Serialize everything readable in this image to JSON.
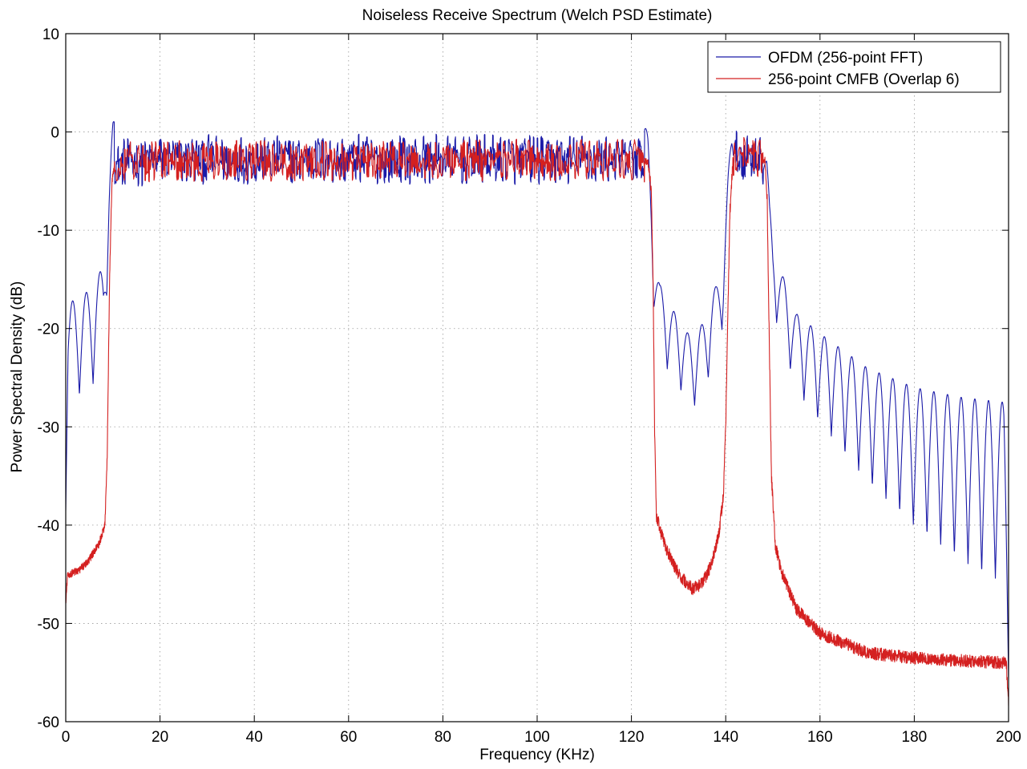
{
  "chart_data": {
    "type": "line",
    "title": "Noiseless Receive Spectrum (Welch PSD Estimate)",
    "xlabel": "Frequency (KHz)",
    "ylabel": "Power Spectral Density (dB)",
    "xlim": [
      0,
      200
    ],
    "ylim": [
      -60,
      10
    ],
    "x_ticks": [
      "0",
      "20",
      "40",
      "60",
      "80",
      "100",
      "120",
      "140",
      "160",
      "180",
      "200"
    ],
    "y_ticks": [
      "10",
      "0",
      "-10",
      "-20",
      "-30",
      "-40",
      "-50",
      "-60"
    ],
    "grid": true,
    "legend_position": "top-right",
    "series": [
      {
        "name": "OFDM (256-point FFT)",
        "color": "#1a1aa8",
        "x": [
          0,
          0.5,
          2,
          4,
          6,
          8,
          8.6,
          9.2,
          10,
          11,
          20,
          40,
          60,
          80,
          100,
          110,
          120,
          122.5,
          123.5,
          124.2,
          124.8,
          126,
          128,
          130,
          132,
          133,
          134,
          136,
          138,
          139.5,
          140.5,
          141.3,
          142,
          143,
          145,
          147,
          148,
          148.7,
          149.3,
          150,
          152,
          155,
          160,
          170,
          180,
          190,
          199,
          200
        ],
        "y": [
          -33,
          -22,
          -21.5,
          -21,
          -20,
          -18,
          -12,
          -7,
          -3.5,
          -3.2,
          -2.8,
          -2.8,
          -2.8,
          -2.8,
          -2.8,
          -2.8,
          -2.8,
          -2.8,
          -5,
          -10,
          -16,
          -20,
          -22,
          -23.5,
          -25,
          -25.5,
          -25,
          -23,
          -20,
          -17,
          -9,
          -4,
          -2.5,
          -2.5,
          -2.5,
          -2.5,
          -3,
          -6,
          -12,
          -16,
          -19,
          -23,
          -25,
          -28.5,
          -30.5,
          -31.5,
          -32,
          -44
        ]
      },
      {
        "name": "256-point CMFB (Overlap 6)",
        "color": "#d42020",
        "x": [
          0,
          0.4,
          1,
          3,
          5,
          7,
          8.3,
          8.8,
          9.3,
          9.8,
          10.5,
          20,
          40,
          60,
          80,
          100,
          110,
          120,
          123.5,
          124.2,
          124.6,
          124.9,
          125.3,
          127,
          130,
          133,
          135,
          137,
          138.5,
          139.5,
          140,
          140.4,
          140.9,
          141.5,
          142.5,
          145,
          147.5,
          148.3,
          148.8,
          149.2,
          149.7,
          150.5,
          152,
          155,
          160,
          170,
          180,
          190,
          199.5,
          200
        ],
        "y": [
          -48,
          -45,
          -45,
          -44.5,
          -43.5,
          -42,
          -40,
          -33,
          -15,
          -5,
          -3,
          -2.9,
          -2.9,
          -2.9,
          -2.9,
          -2.9,
          -2.9,
          -2.9,
          -3,
          -6,
          -15,
          -30,
          -39,
          -42,
          -45,
          -46.5,
          -46,
          -44,
          -41,
          -37,
          -30,
          -20,
          -8,
          -3,
          -2.5,
          -2.5,
          -2.5,
          -3,
          -7,
          -20,
          -35,
          -42,
          -45,
          -48.5,
          -51,
          -53,
          -53.5,
          -53.8,
          -54,
          -58
        ]
      }
    ]
  }
}
